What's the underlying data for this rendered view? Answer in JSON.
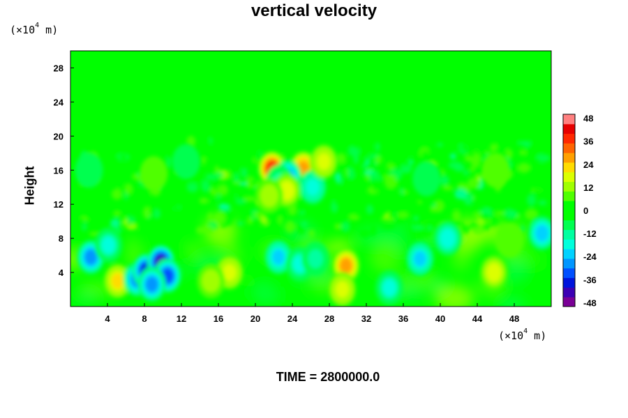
{
  "chart_data": {
    "type": "heatmap",
    "title": "vertical velocity",
    "ylabel": "Height",
    "x_unit": {
      "prefix": "(×10",
      "exp": "4",
      "suffix": " m)"
    },
    "y_unit": {
      "prefix": "(×10",
      "exp": "4",
      "suffix": " m)"
    },
    "xlim": [
      0,
      52
    ],
    "ylim": [
      0,
      30
    ],
    "x_ticks": [
      4,
      8,
      12,
      16,
      20,
      24,
      28,
      32,
      36,
      40,
      44,
      48
    ],
    "y_ticks": [
      4,
      8,
      12,
      16,
      20,
      24,
      28
    ],
    "colorbar": {
      "range": [
        -50,
        50
      ],
      "ticks": [
        48,
        36,
        24,
        12,
        0,
        -12,
        -24,
        -36,
        -48
      ],
      "colors": [
        "#7a0096",
        "#3c00b4",
        "#0014dc",
        "#0050ff",
        "#0096ff",
        "#00d2ff",
        "#00ffdc",
        "#00ffa0",
        "#00ff50",
        "#00ff00",
        "#00ff00",
        "#50ff00",
        "#a0ff00",
        "#dcff00",
        "#ffdc00",
        "#ffa000",
        "#ff6400",
        "#ff2800",
        "#e60000",
        "#ff8080"
      ]
    },
    "features": [
      {
        "x": 2.2,
        "y": 5.8,
        "w": -30
      },
      {
        "x": 4.1,
        "y": 7.2,
        "w": -22
      },
      {
        "x": 5.1,
        "y": 3.0,
        "w": 28
      },
      {
        "x": 7.2,
        "y": 3.2,
        "w": -32
      },
      {
        "x": 8.2,
        "y": 4.2,
        "w": -40
      },
      {
        "x": 9.8,
        "y": 5.2,
        "w": -46
      },
      {
        "x": 10.5,
        "y": 3.6,
        "w": -38
      },
      {
        "x": 8.8,
        "y": 2.6,
        "w": -30
      },
      {
        "x": 17.2,
        "y": 4.0,
        "w": 22
      },
      {
        "x": 15.2,
        "y": 3.0,
        "w": 14
      },
      {
        "x": 22.5,
        "y": 5.8,
        "w": -28
      },
      {
        "x": 24.8,
        "y": 5.0,
        "w": -22
      },
      {
        "x": 26.5,
        "y": 5.6,
        "w": -18
      },
      {
        "x": 29.8,
        "y": 4.8,
        "w": 30
      },
      {
        "x": 29.4,
        "y": 2.0,
        "w": 22
      },
      {
        "x": 34.5,
        "y": 2.2,
        "w": -22
      },
      {
        "x": 37.8,
        "y": 5.6,
        "w": -28
      },
      {
        "x": 45.8,
        "y": 4.0,
        "w": 20
      },
      {
        "x": 47.5,
        "y": 7.8,
        "w": 12
      },
      {
        "x": 40.8,
        "y": 8.0,
        "w": -20
      },
      {
        "x": 51.0,
        "y": 8.6,
        "w": -26
      },
      {
        "x": 21.8,
        "y": 16.2,
        "w": 42
      },
      {
        "x": 25.2,
        "y": 16.2,
        "w": 34
      },
      {
        "x": 23.5,
        "y": 15.2,
        "w": -30
      },
      {
        "x": 22.6,
        "y": 14.6,
        "w": -18
      },
      {
        "x": 26.2,
        "y": 14.0,
        "w": -24
      },
      {
        "x": 23.4,
        "y": 13.6,
        "w": 20
      },
      {
        "x": 21.5,
        "y": 13.0,
        "w": 14
      },
      {
        "x": 27.4,
        "y": 17.0,
        "w": 22
      },
      {
        "x": 2.0,
        "y": 16.0,
        "w": -12
      },
      {
        "x": 9.0,
        "y": 15.6,
        "w": 10
      },
      {
        "x": 38.5,
        "y": 15.0,
        "w": -10
      },
      {
        "x": 12.5,
        "y": 17.0,
        "w": -8
      },
      {
        "x": 46.0,
        "y": 16.0,
        "w": 10
      }
    ]
  },
  "time_label": "TIME = 2800000.0"
}
